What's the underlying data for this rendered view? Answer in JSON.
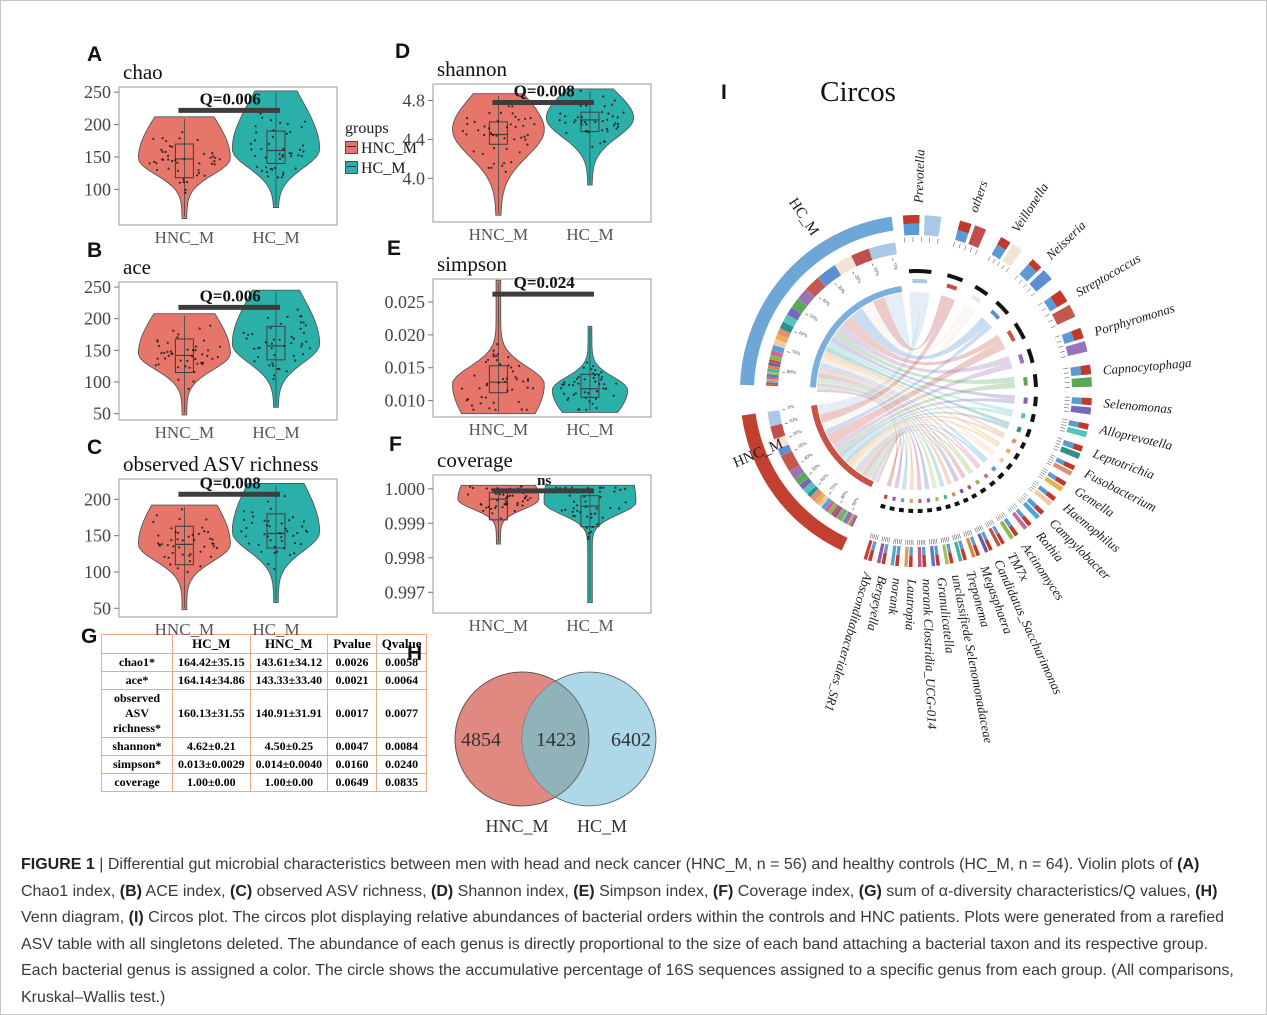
{
  "page": {
    "background": "#ffffff",
    "border_color": "#c6c6c6"
  },
  "colors": {
    "hnc": "#e6756a",
    "hc": "#2bb0a9",
    "sig_bar": "#3d3d3d",
    "axis": "#9a9a9a",
    "table_border": "#efa989",
    "venn_left": "#df837a",
    "venn_right": "#a9d6e7",
    "venn_overlap": "#8fb3b8",
    "circos_hc": "#6ea6d8",
    "circos_hnc": "#c2402f"
  },
  "legend": {
    "title": "groups",
    "items": [
      {
        "label": "HNC_M",
        "color": "#e6756a"
      },
      {
        "label": "HC_M",
        "color": "#2bb0a9"
      }
    ]
  },
  "chart_data": [
    {
      "type": "violin",
      "panel": "A",
      "title": "chao",
      "sig_label": "Q=0.006",
      "sig_y": 222,
      "ymin": 45,
      "ymax": 258,
      "yticks": [
        "100",
        "150",
        "200",
        "250"
      ],
      "ytick_vals": [
        100,
        150,
        200,
        250
      ],
      "x_labels": [
        "HNC_M",
        "HC_M"
      ],
      "violins": [
        {
          "group": "HNC_M",
          "min": 55,
          "max": 212,
          "peak": 148,
          "q1": 118,
          "q3": 170,
          "median": 147,
          "st": 0.42,
          "sb": 0.16,
          "wf": 1.0
        },
        {
          "group": "HC_M",
          "min": 72,
          "max": 252,
          "peak": 162,
          "q1": 140,
          "q3": 190,
          "median": 160,
          "st": 0.4,
          "sb": 0.16,
          "wf": 0.95
        }
      ]
    },
    {
      "type": "violin",
      "panel": "B",
      "title": "ace",
      "sig_label": "Q=0.006",
      "sig_y": 218,
      "ymin": 40,
      "ymax": 258,
      "yticks": [
        "50",
        "100",
        "150",
        "200",
        "250"
      ],
      "ytick_vals": [
        50,
        100,
        150,
        200,
        250
      ],
      "x_labels": [
        "HNC_M",
        "HC_M"
      ],
      "violins": [
        {
          "group": "HNC_M",
          "min": 48,
          "max": 208,
          "peak": 145,
          "q1": 115,
          "q3": 168,
          "median": 142,
          "st": 0.42,
          "sb": 0.16,
          "wf": 1.0
        },
        {
          "group": "HC_M",
          "min": 60,
          "max": 245,
          "peak": 160,
          "q1": 135,
          "q3": 188,
          "median": 157,
          "st": 0.4,
          "sb": 0.16,
          "wf": 0.95
        }
      ]
    },
    {
      "type": "violin",
      "panel": "C",
      "title": "observed ASV richness",
      "sig_label": "Q=0.008",
      "sig_y": 207,
      "ymin": 38,
      "ymax": 228,
      "yticks": [
        "50",
        "100",
        "150",
        "200"
      ],
      "ytick_vals": [
        50,
        100,
        150,
        200
      ],
      "x_labels": [
        "HNC_M",
        "HC_M"
      ],
      "violins": [
        {
          "group": "HNC_M",
          "min": 48,
          "max": 192,
          "peak": 138,
          "q1": 110,
          "q3": 163,
          "median": 138,
          "st": 0.44,
          "sb": 0.16,
          "wf": 1.0
        },
        {
          "group": "HC_M",
          "min": 58,
          "max": 222,
          "peak": 155,
          "q1": 133,
          "q3": 180,
          "median": 153,
          "st": 0.42,
          "sb": 0.16,
          "wf": 0.95
        }
      ]
    },
    {
      "type": "violin",
      "panel": "D",
      "title": "shannon",
      "sig_label": "Q=0.008",
      "sig_y": 4.78,
      "ymin": 3.55,
      "ymax": 4.97,
      "yticks": [
        "4.0",
        "4.4",
        "4.8"
      ],
      "ytick_vals": [
        4.0,
        4.4,
        4.8
      ],
      "x_labels": [
        "HNC_M",
        "HC_M"
      ],
      "violins": [
        {
          "group": "HNC_M",
          "min": 3.62,
          "max": 4.87,
          "peak": 4.5,
          "q1": 4.35,
          "q3": 4.58,
          "median": 4.45,
          "st": 0.26,
          "sb": 0.22,
          "wf": 1.0
        },
        {
          "group": "HC_M",
          "min": 3.93,
          "max": 4.92,
          "peak": 4.62,
          "q1": 4.48,
          "q3": 4.68,
          "median": 4.6,
          "st": 0.26,
          "sb": 0.2,
          "wf": 0.95
        }
      ]
    },
    {
      "type": "violin",
      "panel": "E",
      "title": "simpson",
      "sig_label": "Q=0.024",
      "sig_y": 0.0262,
      "ymin": 0.0075,
      "ymax": 0.0285,
      "yticks": [
        "0.010",
        "0.015",
        "0.020",
        "0.025"
      ],
      "ytick_vals": [
        0.01,
        0.015,
        0.02,
        0.025
      ],
      "x_labels": [
        "HNC_M",
        "HC_M"
      ],
      "violins": [
        {
          "group": "HNC_M",
          "min": 0.008,
          "max": 0.0283,
          "peak": 0.0125,
          "q1": 0.0112,
          "q3": 0.0153,
          "median": 0.0128,
          "st": 0.13,
          "sb": 0.32,
          "wf": 1.0
        },
        {
          "group": "HC_M",
          "min": 0.0082,
          "max": 0.0213,
          "peak": 0.0116,
          "q1": 0.0105,
          "q3": 0.014,
          "median": 0.0118,
          "st": 0.15,
          "sb": 0.32,
          "wf": 0.82
        }
      ]
    },
    {
      "type": "violin",
      "panel": "F",
      "title": "coverage",
      "sig_label": "ns",
      "sig_y": 0.99994,
      "ymin": 0.9964,
      "ymax": 1.0004,
      "yticks": [
        "0.997",
        "0.998",
        "0.999",
        "1.000"
      ],
      "ytick_vals": [
        0.997,
        0.998,
        0.999,
        1.0
      ],
      "x_labels": [
        "HNC_M",
        "HC_M"
      ],
      "violins": [
        {
          "group": "HNC_M",
          "min": 0.9984,
          "max": 1.0001,
          "peak": 0.9997,
          "q1": 0.9991,
          "q3": 0.9999,
          "median": 0.9997,
          "st": 0.55,
          "sb": 0.17,
          "wf": 0.88
        },
        {
          "group": "HC_M",
          "min": 0.9967,
          "max": 1.0001,
          "peak": 0.9996,
          "q1": 0.9989,
          "q3": 0.9998,
          "median": 0.9995,
          "st": 0.55,
          "sb": 0.1,
          "wf": 1.0
        }
      ]
    },
    {
      "type": "table",
      "panel": "G",
      "headers": [
        "",
        "HC_M",
        "HNC_M",
        "Pvalue",
        "Qvalue"
      ],
      "rows": [
        [
          "chao1*",
          "164.42±35.15",
          "143.61±34.12",
          "0.0026",
          "0.0058"
        ],
        [
          "ace*",
          "164.14±34.86",
          "143.33±33.40",
          "0.0021",
          "0.0064"
        ],
        [
          "observed ASV richness*",
          "160.13±31.55",
          "140.91±31.91",
          "0.0017",
          "0.0077"
        ],
        [
          "shannon*",
          "4.62±0.21",
          "4.50±0.25",
          "0.0047",
          "0.0084"
        ],
        [
          "simpson*",
          "0.013±0.0029",
          "0.014±0.0040",
          "0.0160",
          "0.0240"
        ],
        [
          "coverage",
          "1.00±0.00",
          "1.00±0.00",
          "0.0649",
          "0.0835"
        ]
      ]
    },
    {
      "type": "venn",
      "panel": "H",
      "left": {
        "label": "HNC_M",
        "value": "4854",
        "color": "#df837a"
      },
      "overlap": "1423",
      "right": {
        "label": "HC_M",
        "value": "6402",
        "color": "#a9d6e7"
      }
    },
    {
      "type": "circos",
      "panel": "I",
      "title": "Circos",
      "groups": [
        {
          "name": "HC_M",
          "color": "#6ea6d8",
          "arc": [
            272,
            352
          ]
        },
        {
          "name": "HNC_M",
          "color": "#c2402f",
          "arc": [
            205,
            262
          ]
        }
      ],
      "scale_ticks_hnc": [
        "0%",
        "10%",
        "20%",
        "30%",
        "40%",
        "50%",
        "60%",
        "70%",
        "80%",
        "90%"
      ],
      "scale_ticks_hc": [
        "0%",
        "10%",
        "20%",
        "30%",
        "40%",
        "50%",
        "60%",
        "70%",
        "80%"
      ],
      "genera": [
        {
          "name": "Prevotella",
          "color": "#aac7e6",
          "width": 14,
          "angle": 2,
          "hc": 13,
          "hnc": 10
        },
        {
          "name": "others",
          "color": "#c0504d",
          "width": 10,
          "angle": 19,
          "hc": 9,
          "hnc": 9
        },
        {
          "name": "Veillonella",
          "color": "#f2e3d5",
          "width": 9,
          "angle": 33,
          "hc": 9,
          "hnc": 7
        },
        {
          "name": "Neisseria",
          "color": "#5b8fd0",
          "width": 10,
          "angle": 46,
          "hc": 10,
          "hnc": 5
        },
        {
          "name": "Streptococcus",
          "color": "#c4574e",
          "width": 11,
          "angle": 60,
          "hc": 8,
          "hnc": 12
        },
        {
          "name": "Porphyromonas",
          "color": "#9b72b5",
          "width": 9,
          "angle": 73,
          "hc": 6,
          "hnc": 6
        },
        {
          "name": "Capnocytophaga",
          "color": "#58a858",
          "width": 8,
          "angle": 85,
          "hc": 5,
          "hnc": 5
        },
        {
          "name": "Selenomonas",
          "color": "#7668b8",
          "width": 6,
          "angle": 95,
          "hc": 4,
          "hnc": 4
        },
        {
          "name": "Alloprevotella",
          "color": "#56c2bc",
          "width": 5,
          "angle": 103,
          "hc": 4,
          "hnc": 4
        },
        {
          "name": "Leptotrichia",
          "color": "#2f8f8a",
          "width": 5,
          "angle": 110.5,
          "hc": 3.5,
          "hnc": 3
        },
        {
          "name": "Fusobacterium",
          "color": "#e2906a",
          "width": 4,
          "angle": 117,
          "hc": 3,
          "hnc": 4
        },
        {
          "name": "Gemella",
          "color": "#e8b04f",
          "width": 4,
          "angle": 123,
          "hc": 2.5,
          "hnc": 3
        },
        {
          "name": "Haemophilus",
          "color": "#f0c9a8",
          "width": 4,
          "angle": 129,
          "hc": 3,
          "hnc": 3
        },
        {
          "name": "Campylobacter",
          "color": "#4ea3d8",
          "width": 4,
          "angle": 135,
          "hc": 2.5,
          "hnc": 2.5
        },
        {
          "name": "Rothia",
          "color": "#c86a9a",
          "width": 3.5,
          "angle": 140.5,
          "hc": 2.5,
          "hnc": 3
        },
        {
          "name": "Actinomyces",
          "color": "#8ab84f",
          "width": 3.5,
          "angle": 146,
          "hc": 2,
          "hnc": 2.5
        },
        {
          "name": "TM7x",
          "color": "#b8574e",
          "width": 3,
          "angle": 151,
          "hc": 1.5,
          "hnc": 2
        },
        {
          "name": "Candidatus_Saccharimonas",
          "color": "#6a5aa8",
          "width": 3,
          "angle": 155.5,
          "hc": 1.5,
          "hnc": 2
        },
        {
          "name": "Megasphaera",
          "color": "#d88a3c",
          "width": 3,
          "angle": 160,
          "hc": 1.5,
          "hnc": 2
        },
        {
          "name": "Treponema",
          "color": "#48b0a0",
          "width": 3,
          "angle": 164.5,
          "hc": 1.5,
          "hnc": 2
        },
        {
          "name": "unclassifiede Selenomonadaceae",
          "color": "#a0c060",
          "width": 3,
          "angle": 169,
          "hc": 1.2,
          "hnc": 1.5
        },
        {
          "name": "Granulicatella",
          "color": "#5878c0",
          "width": 3,
          "angle": 173.5,
          "hc": 1.2,
          "hnc": 1.5
        },
        {
          "name": "norank Clostridia_UCG-014",
          "color": "#c05880",
          "width": 3,
          "angle": 178,
          "hc": 1,
          "hnc": 1.5
        },
        {
          "name": "Lautropia",
          "color": "#e0a050",
          "width": 3,
          "angle": 182.5,
          "hc": 1,
          "hnc": 1.2
        },
        {
          "name": "norank",
          "color": "#58a8c8",
          "width": 3,
          "angle": 187,
          "hc": 0.8,
          "hnc": 1
        },
        {
          "name": "Bergeyella",
          "color": "#9858a8",
          "width": 3,
          "angle": 191.5,
          "hc": 0.8,
          "hnc": 1
        },
        {
          "name": "Absconditabacteriales_SR1",
          "color": "#c04838",
          "width": 3,
          "angle": 196,
          "hc": 0.8,
          "hnc": 1
        }
      ]
    }
  ],
  "caption": {
    "segments": [
      {
        "t": "FIGURE 1",
        "b": true
      },
      {
        "t": " | Differential gut microbial characteristics between men with head and neck cancer (HNC_M, n = 56) and healthy controls (HC_M, n = 64). Violin plots of "
      },
      {
        "t": "(A)",
        "b": true
      },
      {
        "t": " Chao1 index, "
      },
      {
        "t": "(B)",
        "b": true
      },
      {
        "t": " ACE index, "
      },
      {
        "t": "(C)",
        "b": true
      },
      {
        "t": " observed ASV richness, "
      },
      {
        "t": "(D)",
        "b": true
      },
      {
        "t": " Shannon index, "
      },
      {
        "t": "(E)",
        "b": true
      },
      {
        "t": " Simpson index, "
      },
      {
        "t": "(F)",
        "b": true
      },
      {
        "t": " Coverage index, "
      },
      {
        "t": "(G)",
        "b": true
      },
      {
        "t": " sum of α-diversity characteristics/Q values, "
      },
      {
        "t": "(H)",
        "b": true
      },
      {
        "t": " Venn diagram, "
      },
      {
        "t": "(I)",
        "b": true
      },
      {
        "t": " Circos plot. The circos plot displaying relative abundances of bacterial orders within the controls and HNC patients. Plots were generated from a rarefied ASV table with all singletons deleted. The abundance of each genus is directly proportional to the size of each band attaching a bacterial taxon and its respective group. Each bacterial genus is assigned a color. The circle shows the accumulative percentage of 16S sequences assigned to a specific genus from each group. (All comparisons, Kruskal–Wallis test.)"
      }
    ]
  }
}
